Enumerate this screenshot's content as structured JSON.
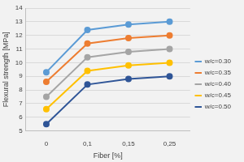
{
  "chart_data": {
    "type": "line",
    "x_label": "Fiber [%]",
    "y_label": "Flexural strength [MPa]",
    "categories": [
      "0",
      "0,1",
      "0,15",
      "0,25"
    ],
    "series": [
      {
        "name": "w/c=0.30",
        "color": "#5b9bd5",
        "values": [
          9.3,
          12.4,
          12.8,
          13.0
        ]
      },
      {
        "name": "w/c=0.35",
        "color": "#ed7d31",
        "values": [
          8.6,
          11.4,
          11.8,
          12.0
        ]
      },
      {
        "name": "w/c=0.40",
        "color": "#a5a5a5",
        "values": [
          7.5,
          10.4,
          10.8,
          11.0
        ]
      },
      {
        "name": "w/c=0.45",
        "color": "#ffc000",
        "values": [
          6.6,
          9.4,
          9.8,
          10.0
        ]
      },
      {
        "name": "w/c=0.50",
        "color": "#2f5597",
        "values": [
          5.5,
          8.4,
          8.8,
          9.0
        ]
      }
    ],
    "ylim": [
      5,
      14
    ],
    "yticks": [
      5,
      6,
      7,
      8,
      9,
      10,
      11,
      12,
      13,
      14
    ],
    "grid": true,
    "legend": "right",
    "marker": "circle",
    "line_style": "solid"
  }
}
